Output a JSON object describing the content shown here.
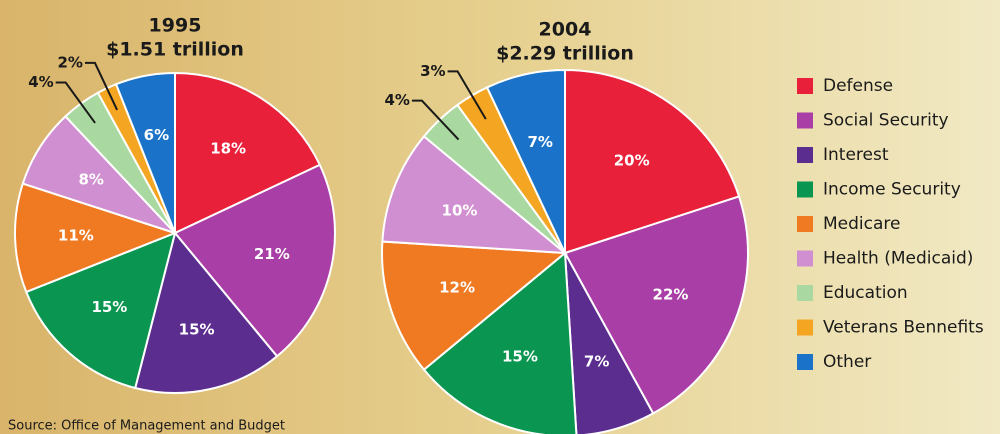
{
  "chart_data": [
    {
      "type": "pie",
      "title": "1995",
      "subtitle": "$1.51 trillion",
      "categories": [
        "Defense",
        "Social Security",
        "Interest",
        "Income Security",
        "Medicare",
        "Health (Medicaid)",
        "Education",
        "Veterans Bennefits",
        "Other"
      ],
      "values": [
        18,
        21,
        15,
        15,
        11,
        8,
        4,
        2,
        6
      ],
      "value_labels": [
        "18%",
        "21%",
        "15%",
        "15%",
        "11%",
        "8%",
        "4%",
        "2%",
        "6%"
      ],
      "colors": [
        "#e8203a",
        "#a93ea6",
        "#5b2d8e",
        "#0a9650",
        "#f07a22",
        "#d08fd0",
        "#a9d9a0",
        "#f4a623",
        "#1a73c8"
      ]
    },
    {
      "type": "pie",
      "title": "2004",
      "subtitle": "$2.29 trillion",
      "categories": [
        "Defense",
        "Social Security",
        "Interest",
        "Income Security",
        "Medicare",
        "Health (Medicaid)",
        "Education",
        "Veterans Bennefits",
        "Other"
      ],
      "values": [
        20,
        22,
        7,
        15,
        12,
        10,
        4,
        3,
        7
      ],
      "value_labels": [
        "20%",
        "22%",
        "7%",
        "15%",
        "12%",
        "10%",
        "4%",
        "3%",
        "7%"
      ],
      "colors": [
        "#e8203a",
        "#a93ea6",
        "#5b2d8e",
        "#0a9650",
        "#f07a22",
        "#d08fd0",
        "#a9d9a0",
        "#f4a623",
        "#1a73c8"
      ]
    }
  ],
  "source": "Source: Office of Management and Budget"
}
